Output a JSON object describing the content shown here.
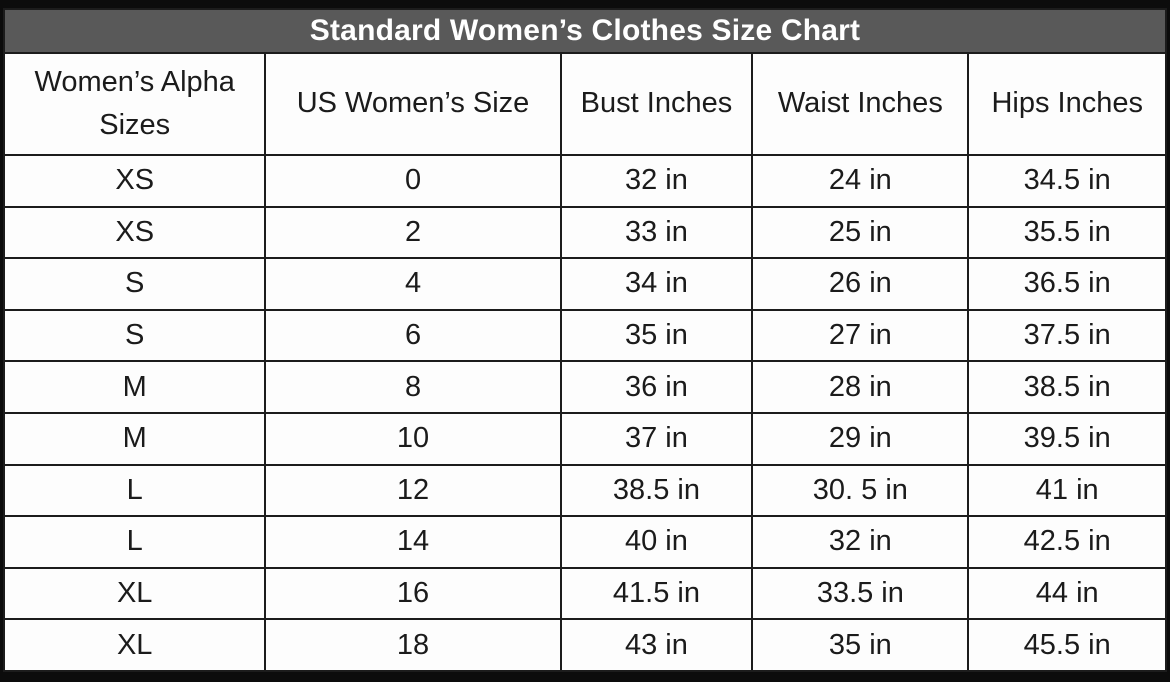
{
  "chart_data": {
    "type": "table",
    "title": "Standard Women’s Clothes Size Chart",
    "columns": [
      "Women’s Alpha Sizes",
      "US Women’s Size",
      "Bust Inches",
      "Waist Inches",
      "Hips Inches"
    ],
    "rows": [
      [
        "XS",
        "0",
        "32 in",
        "24 in",
        "34.5 in"
      ],
      [
        "XS",
        "2",
        "33 in",
        "25 in",
        "35.5 in"
      ],
      [
        "S",
        "4",
        "34 in",
        "26 in",
        "36.5 in"
      ],
      [
        "S",
        "6",
        "35 in",
        "27 in",
        "37.5 in"
      ],
      [
        "M",
        "8",
        "36 in",
        "28 in",
        "38.5 in"
      ],
      [
        "M",
        "10",
        "37 in",
        "29 in",
        "39.5 in"
      ],
      [
        "L",
        "12",
        "38.5 in",
        "30. 5 in",
        "41 in"
      ],
      [
        "L",
        "14",
        "40 in",
        "32 in",
        "42.5 in"
      ],
      [
        "XL",
        "16",
        "41.5 in",
        "33.5 in",
        "44 in"
      ],
      [
        "XL",
        "18",
        "43 in",
        "35 in",
        "45.5 in"
      ]
    ]
  },
  "colors": {
    "title_bg": "#595959",
    "title_text": "#ffffff",
    "border": "#1c1c1c",
    "cell_bg": "#fdfdfd",
    "text": "#1b1b1b",
    "frame": "#0c0c0c"
  }
}
